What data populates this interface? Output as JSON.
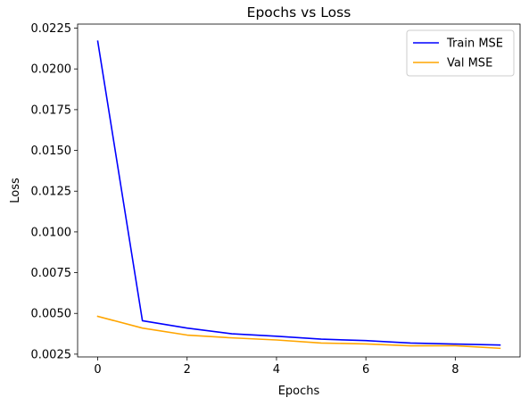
{
  "chart_data": {
    "type": "line",
    "title": "Epochs vs Loss",
    "xlabel": "Epochs",
    "ylabel": "Loss",
    "x": [
      0,
      1,
      2,
      3,
      4,
      5,
      6,
      7,
      8,
      9
    ],
    "xlim": [
      -0.45,
      9.45
    ],
    "ylim": [
      0.00233,
      0.02275
    ],
    "xticks": [
      0,
      2,
      4,
      6,
      8
    ],
    "xtick_labels": [
      "0",
      "2",
      "4",
      "6",
      "8"
    ],
    "yticks": [
      0.0025,
      0.005,
      0.0075,
      0.01,
      0.0125,
      0.015,
      0.0175,
      0.02,
      0.0225
    ],
    "ytick_labels": [
      "0.0025",
      "0.0050",
      "0.0075",
      "0.0100",
      "0.0125",
      "0.0150",
      "0.0175",
      "0.0200",
      "0.0225"
    ],
    "grid": false,
    "legend_position": "top-right",
    "series": [
      {
        "name": "Train MSE",
        "color": "#0000ff",
        "values": [
          0.0217,
          0.00455,
          0.0041,
          0.00375,
          0.0036,
          0.00342,
          0.00333,
          0.00318,
          0.00312,
          0.00306
        ]
      },
      {
        "name": "Val MSE",
        "color": "#ffa500",
        "values": [
          0.00482,
          0.0041,
          0.00367,
          0.0035,
          0.00337,
          0.00318,
          0.00313,
          0.00301,
          0.00302,
          0.00286
        ]
      }
    ]
  }
}
